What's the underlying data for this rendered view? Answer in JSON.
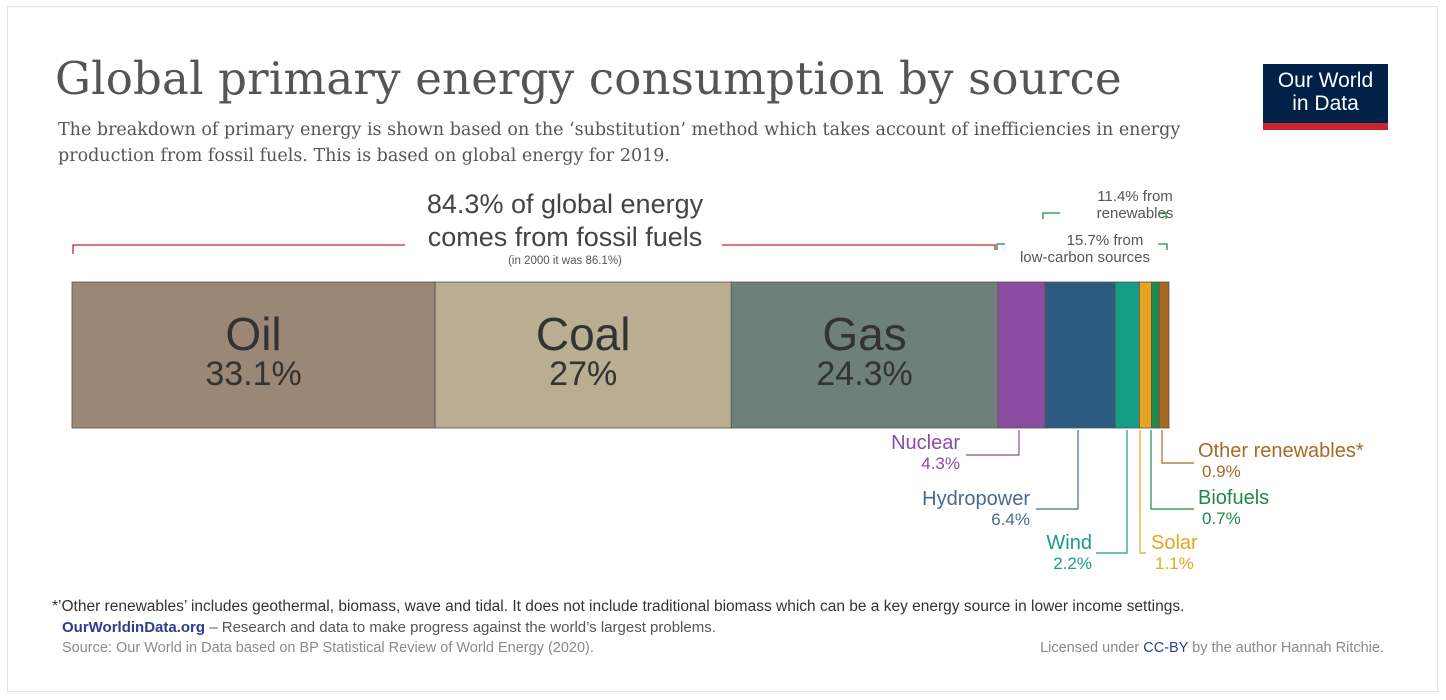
{
  "title": "Global primary energy consumption by source",
  "subtitle": "The breakdown of primary energy is shown based on the ‘substitution’ method which takes account of inefficiencies in energy production from fossil fuels. This is based on global energy for 2019.",
  "logo": {
    "line1": "Our World",
    "line2": "in Data",
    "bg": "#002147",
    "accent": "#c6262e"
  },
  "annotations": {
    "fossil_line1": "84.3% of global energy",
    "fossil_line2": "comes from fossil fuels",
    "fossil_note": "(in 2000 it was 86.1%)",
    "renew_line1": "11.4% from",
    "renew_line2": "renewables",
    "lowcarbon_line1": "15.7% from",
    "lowcarbon_line2": "low-carbon sources"
  },
  "chart_data": {
    "type": "bar",
    "orientation": "horizontal-stacked",
    "title": "Global primary energy consumption by source",
    "unit": "%",
    "categories": [
      "Oil",
      "Coal",
      "Gas",
      "Nuclear",
      "Hydropower",
      "Wind",
      "Solar",
      "Biofuels",
      "Other renewables*"
    ],
    "values": [
      33.1,
      27,
      24.3,
      4.3,
      6.4,
      2.2,
      1.1,
      0.7,
      0.9
    ],
    "value_labels": [
      "33.1%",
      "27%",
      "24.3%",
      "4.3%",
      "6.4%",
      "2.2%",
      "1.1%",
      "0.7%",
      "0.9%"
    ],
    "colors": [
      "#9b8775",
      "#b9ae92",
      "#6f7f79",
      "#8b4ba0",
      "#2d5a7f",
      "#169d86",
      "#e6a521",
      "#1f8a48",
      "#a66a23"
    ],
    "label_colors": [
      "#333333",
      "#333333",
      "#333333",
      "#8b4ba0",
      "#4a6a8c",
      "#169d86",
      "#e2a81e",
      "#1f8a48",
      "#a66a23"
    ],
    "groups": {
      "fossil": {
        "share": 84.3
      },
      "renewables": {
        "share": 11.4
      },
      "low_carbon": {
        "share": 15.7
      }
    }
  },
  "footer": {
    "footnote": "*’Other renewables’ includes geothermal, biomass, wave and tidal. It does not include traditional biomass which can be a key energy source in lower income settings.",
    "site": "OurWorldinData.org",
    "tagline": " – Research and data to make progress against the world’s largest problems.",
    "source": "Source: Our World in Data based on BP Statistical Review of World Energy (2020).",
    "license_pre": "Licensed under ",
    "license_link": "CC-BY",
    "license_post": " by the author Hannah Ritchie."
  }
}
